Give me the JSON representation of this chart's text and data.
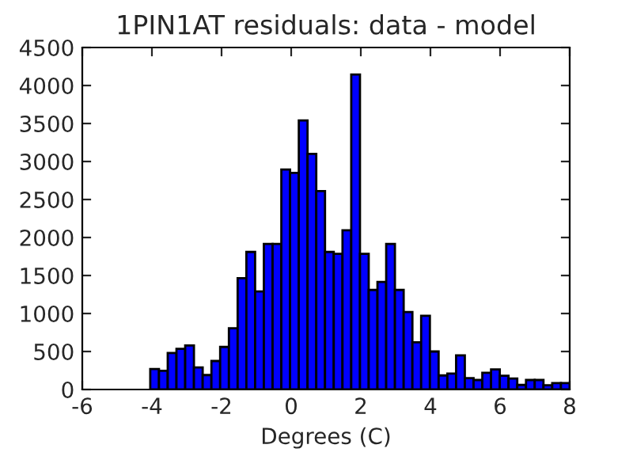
{
  "chart_data": {
    "type": "histogram",
    "title": "1PIN1AT residuals: data - model",
    "xlabel": "Degrees (C)",
    "color": "#0000ff",
    "bins": [
      -4.55,
      -4.299,
      -4.048,
      -3.797,
      -3.546,
      -3.295,
      -3.044,
      -2.793,
      -2.542,
      -2.291,
      -2.04,
      -1.789,
      -1.538,
      -1.287,
      -1.036,
      -0.785,
      -0.534,
      -0.283,
      -0.032,
      0.219,
      0.47,
      0.721,
      0.972,
      1.223,
      1.474,
      1.725,
      1.976,
      2.227,
      2.478,
      2.729,
      2.98,
      3.231,
      3.482,
      3.733,
      3.984,
      4.235,
      4.486,
      4.737,
      4.988,
      5.239,
      5.49,
      5.741,
      5.992,
      6.243,
      6.494,
      6.745,
      6.996,
      7.247,
      7.498,
      7.749,
      8.0
    ],
    "values": [
      null,
      null,
      270,
      245,
      480,
      535,
      580,
      290,
      190,
      375,
      560,
      805,
      1465,
      1810,
      1290,
      1915,
      1915,
      2895,
      2850,
      3540,
      3100,
      2610,
      1810,
      1785,
      2095,
      4145,
      1785,
      1310,
      1415,
      1915,
      1310,
      1020,
      620,
      970,
      500,
      185,
      210,
      450,
      150,
      125,
      220,
      265,
      180,
      145,
      60,
      125,
      125,
      55,
      85,
      85
    ],
    "xlim": [
      -6,
      8
    ],
    "xticks": [
      -6,
      -4,
      -2,
      0,
      2,
      4,
      6,
      8
    ],
    "ylim": [
      0,
      4500
    ],
    "yticks": [
      0,
      500,
      1000,
      1500,
      2000,
      2500,
      3000,
      3500,
      4000,
      4500
    ],
    "grid": false,
    "legend": false
  }
}
